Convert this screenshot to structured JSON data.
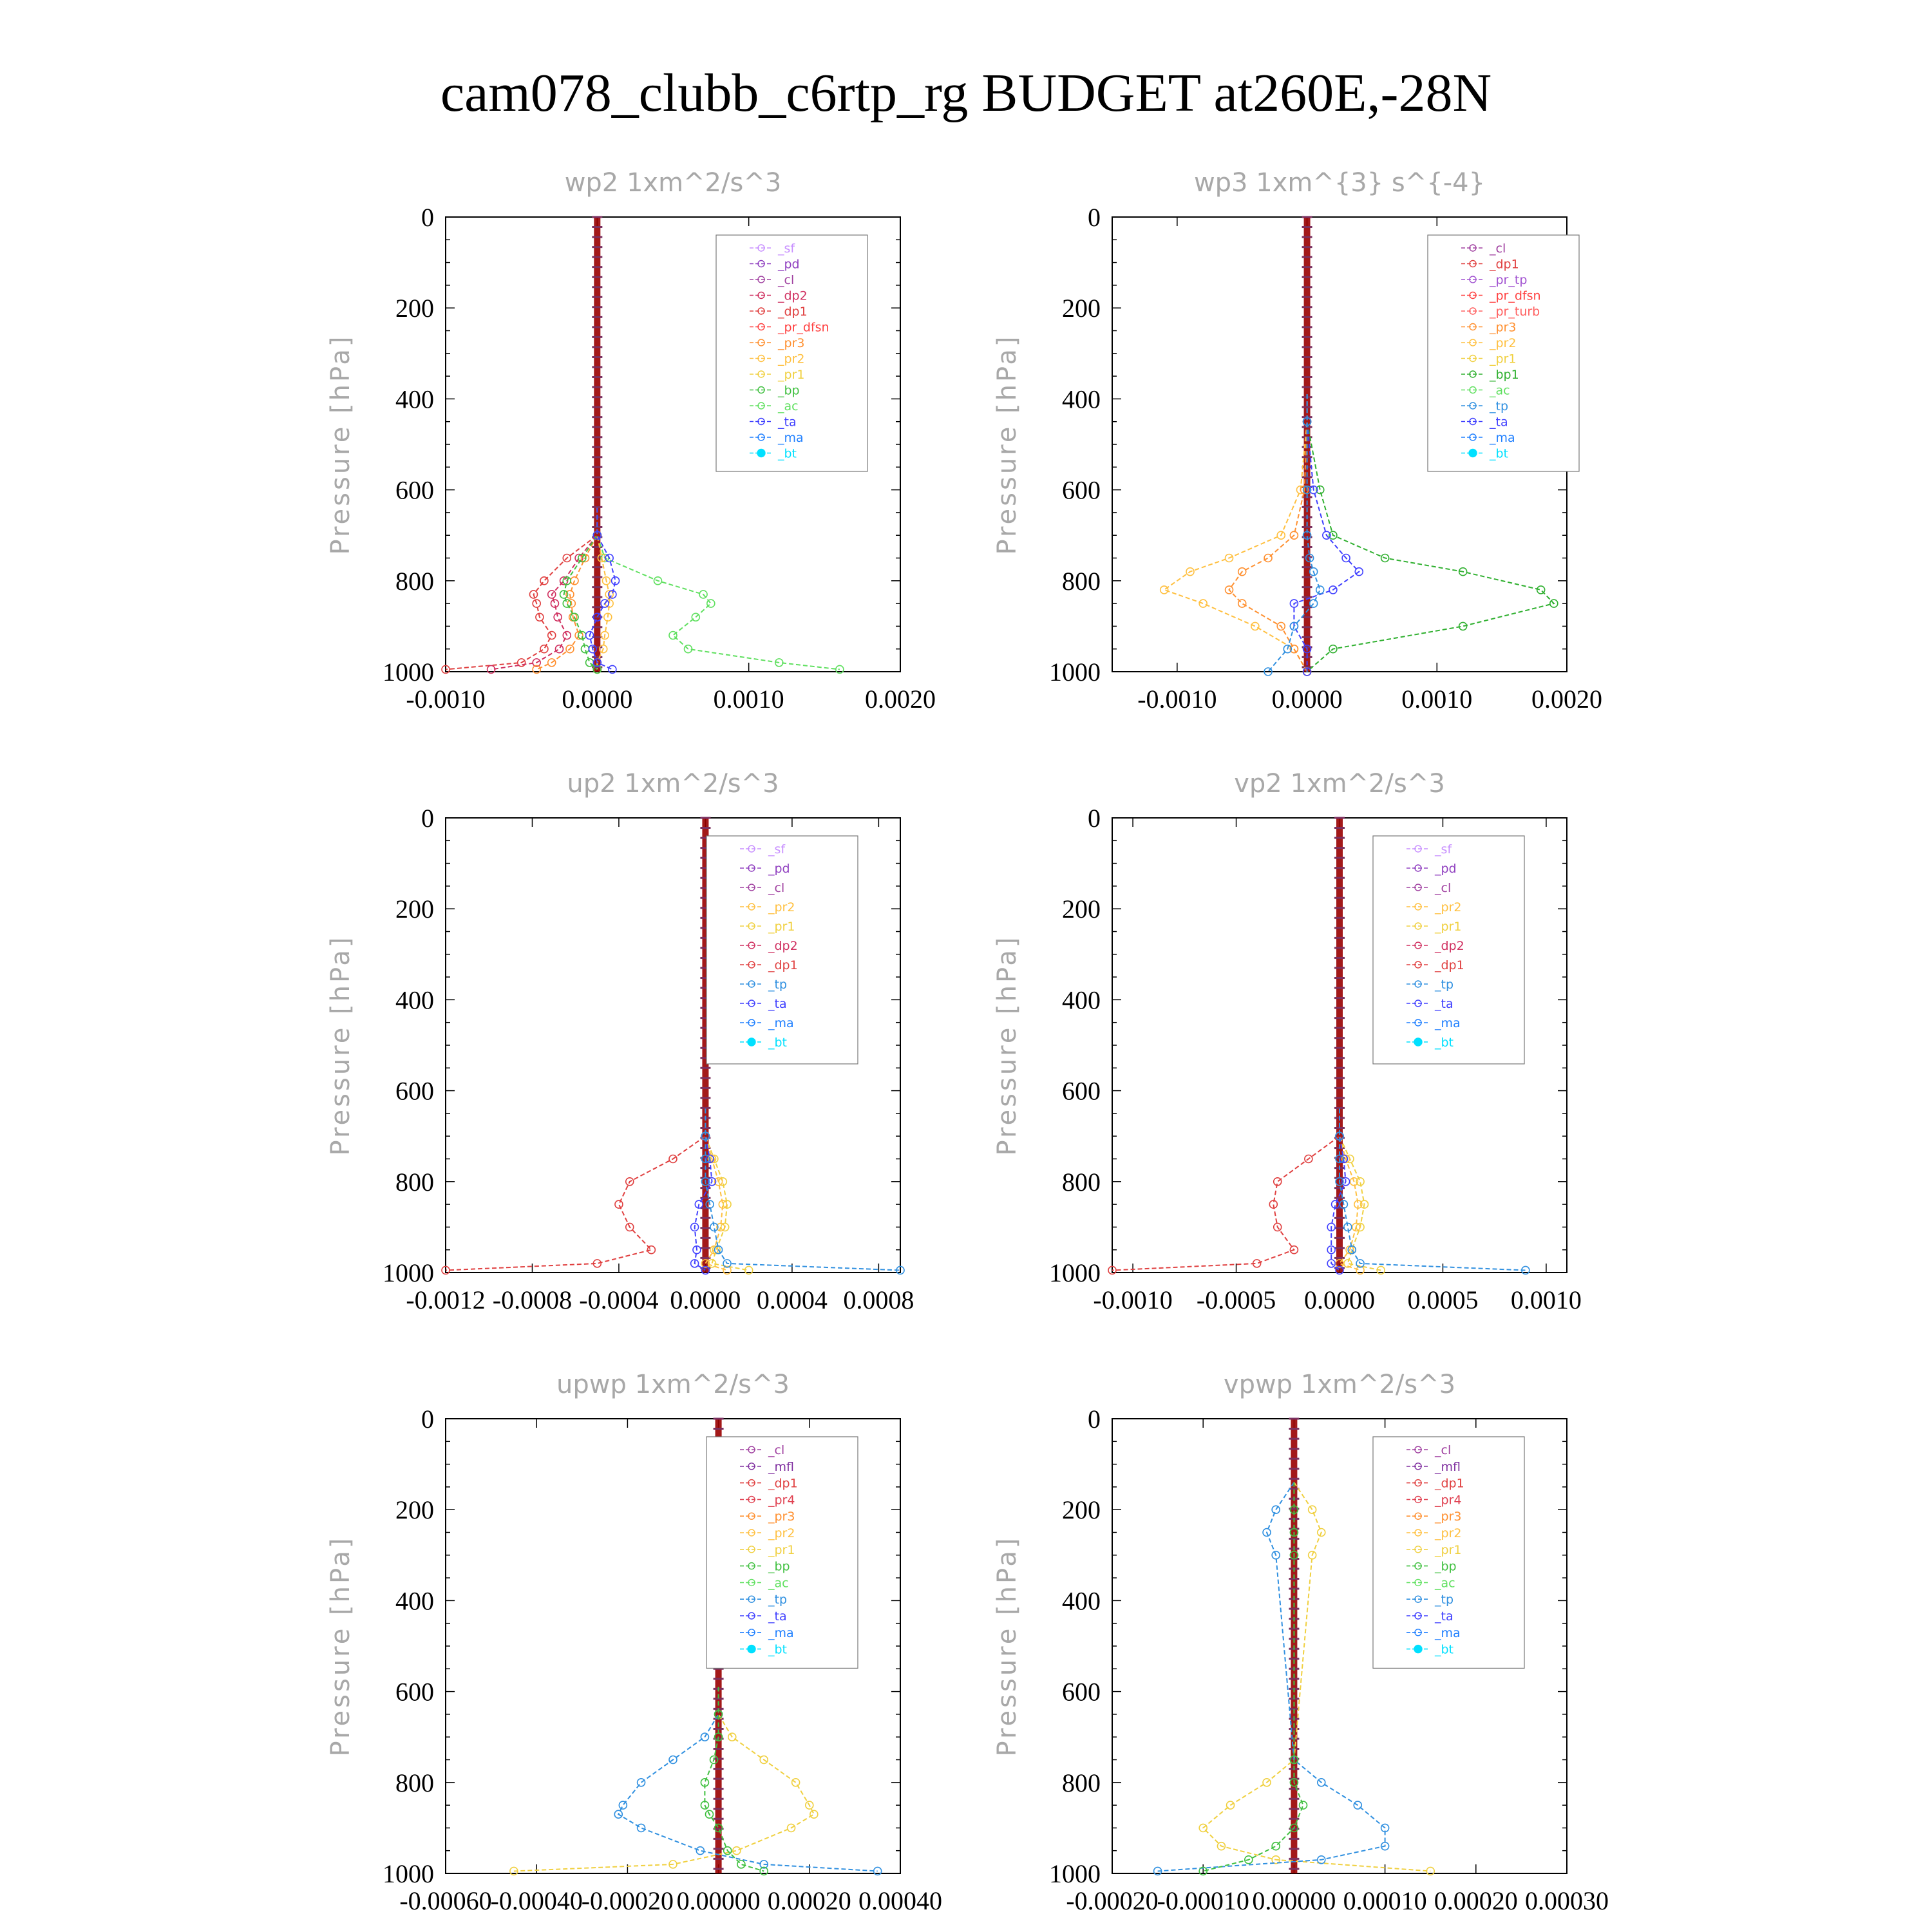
{
  "figure": {
    "title": "cam078_clubb_c6rtp_rg  BUDGET at260E,-28N"
  },
  "colors": {
    "_sf": "#c890ff",
    "_pd": "#9040c0",
    "_cl": "#a040a0",
    "_mfl": "#8030a0",
    "_dp2": "#d03060",
    "_dp1": "#e04040",
    "_pr_dfsn": "#ff4040",
    "_pr_tp": "#a050d0",
    "_pr_turb": "#ff6060",
    "_pr4": "#e04050",
    "_pr3": "#ff9030",
    "_pr2": "#ffc040",
    "_pr1": "#f0d040",
    "_bp": "#40c040",
    "_bp1": "#30b030",
    "_ac": "#60e060",
    "_tp": "#3090e0",
    "_ta": "#4040ff",
    "_ma": "#2080ff",
    "_bt": "#00e0ff",
    "bar": "#990000"
  },
  "chart_data": [
    {
      "type": "line",
      "title": "wp2  1xm^2/s^3",
      "ylabel": "Pressure [hPa]",
      "xlim": [
        -0.001,
        0.002
      ],
      "ylim": [
        1000,
        0
      ],
      "y_inverted": true,
      "xticks": [
        "-0.0010",
        "0.0000",
        "0.0010",
        "0.0020"
      ],
      "yticks": [
        "0",
        "200",
        "400",
        "600",
        "800",
        "1000"
      ],
      "legend_position": "top-right",
      "legend": [
        "_sf",
        "_pd",
        "_cl",
        "_dp2",
        "_dp1",
        "_pr_dfsn",
        "_pr3",
        "_pr2",
        "_pr1",
        "_bp",
        "_ac",
        "_ta",
        "_ma",
        "_bt"
      ],
      "y": [
        700,
        750,
        800,
        830,
        850,
        880,
        920,
        950,
        980,
        995
      ],
      "series": [
        {
          "name": "_ac",
          "x": [
            0.0,
            5e-05,
            0.0004,
            0.0007,
            0.00075,
            0.00065,
            0.0005,
            0.0006,
            0.0012,
            0.0016
          ]
        },
        {
          "name": "_dp1",
          "x": [
            0.0,
            -0.0002,
            -0.00035,
            -0.00042,
            -0.0004,
            -0.00038,
            -0.0003,
            -0.00035,
            -0.0005,
            -0.001
          ]
        },
        {
          "name": "_dp2",
          "x": [
            0.0,
            -0.00012,
            -0.00022,
            -0.0003,
            -0.00028,
            -0.00026,
            -0.0002,
            -0.00025,
            -0.0004,
            -0.0007
          ]
        },
        {
          "name": "_pr3",
          "x": [
            0.0,
            -8e-05,
            -0.00015,
            -0.00018,
            -0.00017,
            -0.00016,
            -0.00012,
            -0.00018,
            -0.0003,
            -0.0004
          ]
        },
        {
          "name": "_pr2",
          "x": [
            0.0,
            3e-05,
            6e-05,
            8e-05,
            8e-05,
            7e-05,
            5e-05,
            4e-05,
            0.0,
            0.0
          ]
        },
        {
          "name": "_bp",
          "x": [
            0.0,
            -0.0001,
            -0.0002,
            -0.00022,
            -0.0002,
            -0.00015,
            -0.0001,
            -8e-05,
            -5e-05,
            0.0
          ]
        },
        {
          "name": "_ta",
          "x": [
            0.0,
            8e-05,
            0.00012,
            0.0001,
            5e-05,
            0.0,
            -5e-05,
            -3e-05,
            0.0,
            0.0001
          ]
        }
      ]
    },
    {
      "type": "line",
      "title": "wp3  1xm^{3} s^{-4}",
      "ylabel": "Pressure [hPa]",
      "xlim": [
        -0.0015,
        0.002
      ],
      "ylim": [
        1000,
        0
      ],
      "y_inverted": true,
      "xticks": [
        "-0.0010",
        "0.0000",
        "0.0010",
        "0.0020"
      ],
      "yticks": [
        "0",
        "200",
        "400",
        "600",
        "800",
        "1000"
      ],
      "legend_position": "top-right",
      "legend": [
        "_cl",
        "_dp1",
        "_pr_tp",
        "_pr_dfsn",
        "_pr_turb",
        "_pr3",
        "_pr2",
        "_pr1",
        "_bp1",
        "_ac",
        "_tp",
        "_ta",
        "_ma",
        "_bt"
      ],
      "y": [
        450,
        600,
        700,
        750,
        780,
        820,
        850,
        900,
        950,
        1000
      ],
      "series": [
        {
          "name": "_bp1",
          "x": [
            0.0,
            0.0001,
            0.0002,
            0.0006,
            0.0012,
            0.0018,
            0.0019,
            0.0012,
            0.0002,
            0.0
          ]
        },
        {
          "name": "_pr2",
          "x": [
            0.0,
            -5e-05,
            -0.0002,
            -0.0006,
            -0.0009,
            -0.0011,
            -0.0008,
            -0.0004,
            -0.0001,
            0.0
          ]
        },
        {
          "name": "_pr3",
          "x": [
            0.0,
            -2e-05,
            -0.0001,
            -0.0003,
            -0.0005,
            -0.0006,
            -0.0005,
            -0.0002,
            -0.0001,
            0.0
          ]
        },
        {
          "name": "_ta",
          "x": [
            0.0,
            5e-05,
            0.00015,
            0.0003,
            0.0004,
            0.0002,
            -0.0001,
            -0.0001,
            0.0,
            0.0
          ]
        },
        {
          "name": "_tp",
          "x": [
            0.0,
            0.0,
            0.0,
            2e-05,
            5e-05,
            0.0001,
            5e-05,
            -0.0001,
            -0.00015,
            -0.0003
          ]
        }
      ]
    },
    {
      "type": "line",
      "title": "up2  1xm^2/s^3",
      "ylabel": "Pressure [hPa]",
      "xlim": [
        -0.0012,
        0.0009
      ],
      "ylim": [
        1000,
        0
      ],
      "y_inverted": true,
      "xticks": [
        "-0.0012",
        "-0.0008",
        "-0.0004",
        "0.0000",
        "0.0004",
        "0.0008"
      ],
      "yticks": [
        "0",
        "200",
        "400",
        "600",
        "800",
        "1000"
      ],
      "legend_position": "top-right",
      "legend": [
        "_sf",
        "_pd",
        "_cl",
        "_pr2",
        "_pr1",
        "_dp2",
        "_dp1",
        "_tp",
        "_ta",
        "_ma",
        "_bt"
      ],
      "y": [
        700,
        750,
        800,
        850,
        900,
        950,
        980,
        995
      ],
      "series": [
        {
          "name": "_dp1",
          "x": [
            0.0,
            -0.00015,
            -0.00035,
            -0.0004,
            -0.00035,
            -0.00025,
            -0.0005,
            -0.0012
          ]
        },
        {
          "name": "_pr1",
          "x": [
            0.0,
            4e-05,
            8e-05,
            0.0001,
            9e-05,
            5e-05,
            3e-05,
            0.0002
          ]
        },
        {
          "name": "_pr2",
          "x": [
            0.0,
            3e-05,
            6e-05,
            8e-05,
            7e-05,
            4e-05,
            0.0,
            0.0001
          ]
        },
        {
          "name": "_ta",
          "x": [
            0.0,
            2e-05,
            3e-05,
            -3e-05,
            -5e-05,
            -4e-05,
            -5e-05,
            0.0
          ]
        },
        {
          "name": "_tp",
          "x": [
            0.0,
            0.0,
            0.0,
            2e-05,
            4e-05,
            6e-05,
            0.0001,
            0.0009
          ]
        }
      ]
    },
    {
      "type": "line",
      "title": "vp2  1xm^2/s^3",
      "ylabel": "Pressure [hPa]",
      "xlim": [
        -0.0011,
        0.0011
      ],
      "ylim": [
        1000,
        0
      ],
      "y_inverted": true,
      "xticks": [
        "-0.0010",
        "-0.0005",
        "0.0000",
        "0.0005",
        "0.0010"
      ],
      "yticks": [
        "0",
        "200",
        "400",
        "600",
        "800",
        "1000"
      ],
      "legend_position": "top-right",
      "legend": [
        "_sf",
        "_pd",
        "_cl",
        "_pr2",
        "_pr1",
        "_dp2",
        "_dp1",
        "_tp",
        "_ta",
        "_ma",
        "_bt"
      ],
      "y": [
        700,
        750,
        800,
        850,
        900,
        950,
        980,
        995
      ],
      "series": [
        {
          "name": "_dp1",
          "x": [
            0.0,
            -0.00015,
            -0.0003,
            -0.00032,
            -0.0003,
            -0.00022,
            -0.0004,
            -0.0011
          ]
        },
        {
          "name": "_pr1",
          "x": [
            0.0,
            5e-05,
            0.0001,
            0.00012,
            0.0001,
            6e-05,
            4e-05,
            0.0002
          ]
        },
        {
          "name": "_pr2",
          "x": [
            0.0,
            3e-05,
            7e-05,
            9e-05,
            8e-05,
            5e-05,
            0.0,
            0.0001
          ]
        },
        {
          "name": "_ta",
          "x": [
            0.0,
            2e-05,
            3e-05,
            -2e-05,
            -4e-05,
            -4e-05,
            -4e-05,
            0.0
          ]
        },
        {
          "name": "_tp",
          "x": [
            0.0,
            0.0,
            0.0,
            2e-05,
            4e-05,
            6e-05,
            0.0001,
            0.0009
          ]
        }
      ]
    },
    {
      "type": "line",
      "title": "upwp  1xm^2/s^3",
      "ylabel": "Pressure [hPa]",
      "xlim": [
        -0.0006,
        0.0004
      ],
      "ylim": [
        1000,
        0
      ],
      "y_inverted": true,
      "xticks": [
        "-0.00060",
        "-0.00040",
        "-0.00020",
        "0.00000",
        "0.00020",
        "0.00040"
      ],
      "yticks": [
        "0",
        "200",
        "400",
        "600",
        "800",
        "1000"
      ],
      "legend_position": "top-right",
      "legend": [
        "_cl",
        "_mfl",
        "_dp1",
        "_pr4",
        "_pr3",
        "_pr2",
        "_pr1",
        "_bp",
        "_ac",
        "_tp",
        "_ta",
        "_ma",
        "_bt"
      ],
      "y": [
        650,
        700,
        750,
        800,
        850,
        870,
        900,
        950,
        980,
        995
      ],
      "series": [
        {
          "name": "_pr1",
          "x": [
            0.0,
            3e-05,
            0.0001,
            0.00017,
            0.0002,
            0.00021,
            0.00016,
            4e-05,
            -0.0001,
            -0.00045
          ]
        },
        {
          "name": "_tp",
          "x": [
            0.0,
            -3e-05,
            -0.0001,
            -0.00017,
            -0.00021,
            -0.00022,
            -0.00017,
            -4e-05,
            0.0001,
            0.00035
          ]
        },
        {
          "name": "_bp",
          "x": [
            0.0,
            0.0,
            -1e-05,
            -3e-05,
            -3e-05,
            -2e-05,
            0.0,
            2e-05,
            5e-05,
            0.0001
          ]
        }
      ]
    },
    {
      "type": "line",
      "title": "vpwp  1xm^2/s^3",
      "ylabel": "Pressure [hPa]",
      "xlim": [
        -0.0002,
        0.0003
      ],
      "ylim": [
        1000,
        0
      ],
      "y_inverted": true,
      "xticks": [
        "-0.00020",
        "-0.00010",
        "0.00000",
        "0.00010",
        "0.00020",
        "0.00030"
      ],
      "yticks": [
        "0",
        "200",
        "400",
        "600",
        "800",
        "1000"
      ],
      "legend_position": "top-right",
      "legend": [
        "_cl",
        "_mfl",
        "_dp1",
        "_pr4",
        "_pr3",
        "_pr2",
        "_pr1",
        "_bp",
        "_ac",
        "_tp",
        "_ta",
        "_ma",
        "_bt"
      ],
      "y": [
        200,
        250,
        300,
        750,
        800,
        850,
        900,
        940,
        970,
        995
      ],
      "series": [
        {
          "name": "_pr1",
          "x": [
            2e-05,
            3e-05,
            2e-05,
            0.0,
            -3e-05,
            -7e-05,
            -0.0001,
            -8e-05,
            -2e-05,
            0.00015
          ]
        },
        {
          "name": "_tp",
          "x": [
            -2e-05,
            -3e-05,
            -2e-05,
            0.0,
            3e-05,
            7e-05,
            0.0001,
            0.0001,
            3e-05,
            -0.00015
          ]
        },
        {
          "name": "_bp",
          "x": [
            0.0,
            0.0,
            0.0,
            0.0,
            0.0,
            1e-05,
            0.0,
            -2e-05,
            -5e-05,
            -0.0001
          ]
        }
      ]
    }
  ]
}
